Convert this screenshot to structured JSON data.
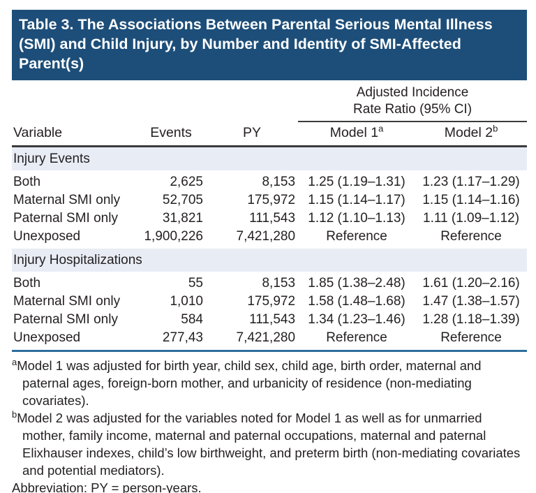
{
  "colors": {
    "title_bar_bg": "#1d4e79",
    "title_text": "#ffffff",
    "section_band_bg": "#e8ecf5",
    "dark_rule": "#3b3b3b",
    "blue_rule": "#2e6e9e",
    "body_text": "#231f20"
  },
  "table": {
    "title_lines": [
      "Table 3. The Associations Between Parental Serious Mental Illness",
      "(SMI) and Child Injury, by Number and Identity of SMI-Affected",
      "Parent(s)"
    ],
    "spanner": {
      "line1": "Adjusted Incidence",
      "line2": "Rate Ratio (95% CI)"
    },
    "headers": {
      "variable": "Variable",
      "events": "Events",
      "py": "PY",
      "model1_label": "Model 1",
      "model1_sup": "a",
      "model2_label": "Model 2",
      "model2_sup": "b"
    },
    "sections": [
      {
        "header": "Injury Events",
        "rows": [
          {
            "variable": "Both",
            "events": "2,625",
            "py": "8,153",
            "model1": "1.25 (1.19–1.31)",
            "model2": "1.23 (1.17–1.29)"
          },
          {
            "variable": "Maternal SMI only",
            "events": "52,705",
            "py": "175,972",
            "model1": "1.15 (1.14–1.17)",
            "model2": "1.15 (1.14–1.16)"
          },
          {
            "variable": "Paternal SMI only",
            "events": "31,821",
            "py": "111,543",
            "model1": "1.12 (1.10–1.13)",
            "model2": "1.11 (1.09–1.12)"
          },
          {
            "variable": "Unexposed",
            "events": "1,900,226",
            "py": "7,421,280",
            "model1": "Reference",
            "model2": "Reference"
          }
        ]
      },
      {
        "header": "Injury Hospitalizations",
        "rows": [
          {
            "variable": "Both",
            "events": "55",
            "py": "8,153",
            "model1": "1.85 (1.38–2.48)",
            "model2": "1.61 (1.20–2.16)"
          },
          {
            "variable": "Maternal SMI only",
            "events": "1,010",
            "py": "175,972",
            "model1": "1.58 (1.48–1.68)",
            "model2": "1.47 (1.38–1.57)"
          },
          {
            "variable": "Paternal SMI only",
            "events": "584",
            "py": "111,543",
            "model1": "1.34 (1.23–1.46)",
            "model2": "1.28 (1.18–1.39)"
          },
          {
            "variable": "Unexposed",
            "events": "277,43",
            "py": "7,421,280",
            "model1": "Reference",
            "model2": "Reference"
          }
        ]
      }
    ],
    "footnotes": [
      {
        "sup": "a",
        "text": "Model 1 was adjusted for birth year, child sex, child age, birth order, maternal and paternal ages, foreign-born mother, and urbanicity of residence (non-mediating covariates)."
      },
      {
        "sup": "b",
        "text": "Model 2 was adjusted for the variables noted for Model 1 as well as for unmarried mother, family income, maternal and paternal occupations, maternal and paternal Elixhauser indexes, child’s low birthweight, and preterm birth (non-mediating covariates and potential mediators)."
      }
    ],
    "abbreviation": "Abbreviation: PY = person-years."
  }
}
